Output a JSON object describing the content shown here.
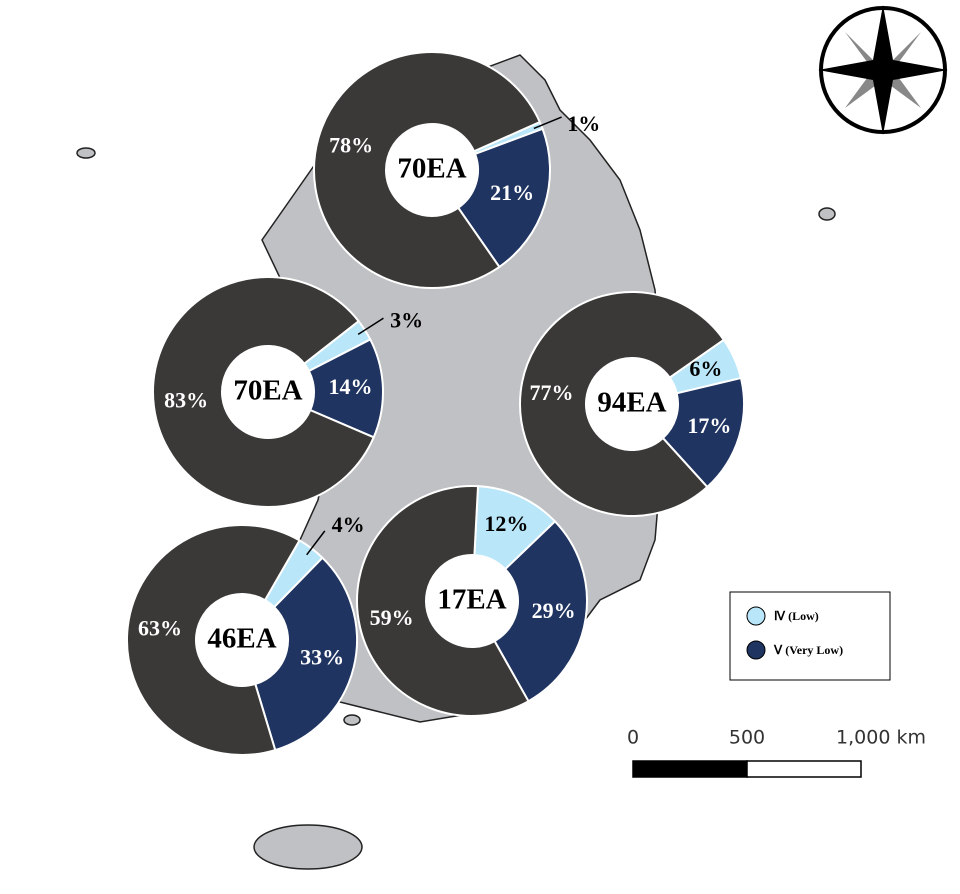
{
  "donuts": [
    {
      "label": "70EA",
      "values": [
        1,
        21,
        78
      ],
      "value_labels": [
        "1%",
        "21%",
        "78%"
      ]
    },
    {
      "label": "70EA",
      "values": [
        3,
        14,
        83
      ],
      "value_labels": [
        "3%",
        "14%",
        "83%"
      ]
    },
    {
      "label": "94EA",
      "values": [
        6,
        17,
        77
      ],
      "value_labels": [
        "6%",
        "17%",
        "77%"
      ]
    },
    {
      "label": "46EA",
      "values": [
        4,
        33,
        63
      ],
      "value_labels": [
        "4%",
        "33%",
        "63%"
      ]
    },
    {
      "label": "17EA",
      "values": [
        12,
        29,
        59
      ],
      "value_labels": [
        "12%",
        "29%",
        "59%"
      ]
    }
  ],
  "colors": [
    "#b9e6f8",
    "#1f3461",
    "#3a3937"
  ],
  "legend": {
    "items": [
      {
        "name": "Ⅳ (Low)",
        "color": "#b9e6f8"
      },
      {
        "name": "Ⅴ (Very Low)",
        "color": "#1f3461"
      }
    ]
  },
  "scale_bar": {
    "ticks": [
      0,
      500,
      {
        "value": 1000,
        "label": "1,000 km"
      }
    ]
  }
}
